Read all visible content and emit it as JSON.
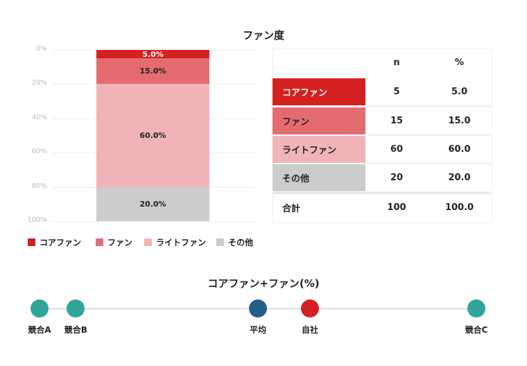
{
  "chart_data": [
    {
      "type": "bar",
      "stacked": true,
      "title": "ファン度",
      "ylim": [
        0,
        100
      ],
      "yticks": [
        "0%",
        "20%",
        "40%",
        "60%",
        "80%",
        "100%"
      ],
      "series": [
        {
          "name": "コアファン",
          "value": 5.0,
          "label": "5.0%",
          "color": "#d42020"
        },
        {
          "name": "ファン",
          "value": 15.0,
          "label": "15.0%",
          "color": "#e46c70"
        },
        {
          "name": "ライトファン",
          "value": 60.0,
          "label": "60.0%",
          "color": "#f0b4b8"
        },
        {
          "name": "その他",
          "value": 20.0,
          "label": "20.0%",
          "color": "#cccccc"
        }
      ],
      "legend": "bottom"
    },
    {
      "type": "table",
      "headers": [
        "",
        "n",
        "%"
      ],
      "rows": [
        [
          "コアファン",
          "5",
          "5.0"
        ],
        [
          "ファン",
          "15",
          "15.0"
        ],
        [
          "ライトファン",
          "60",
          "60.0"
        ],
        [
          "その他",
          "20",
          "20.0"
        ],
        [
          "合計",
          "100",
          "100.0"
        ]
      ]
    },
    {
      "type": "scatter",
      "title": "コアファン+ファン(%)",
      "points": [
        {
          "label": "競合A",
          "rank": 0.0,
          "color": "#2fa699"
        },
        {
          "label": "競合B",
          "rank": 0.083,
          "color": "#2fa699"
        },
        {
          "label": "平均",
          "rank": 0.5,
          "color": "#245f87"
        },
        {
          "label": "自社",
          "rank": 0.619,
          "color": "#d42020"
        },
        {
          "label": "競合C",
          "rank": 1.0,
          "color": "#2fa699"
        }
      ]
    }
  ]
}
